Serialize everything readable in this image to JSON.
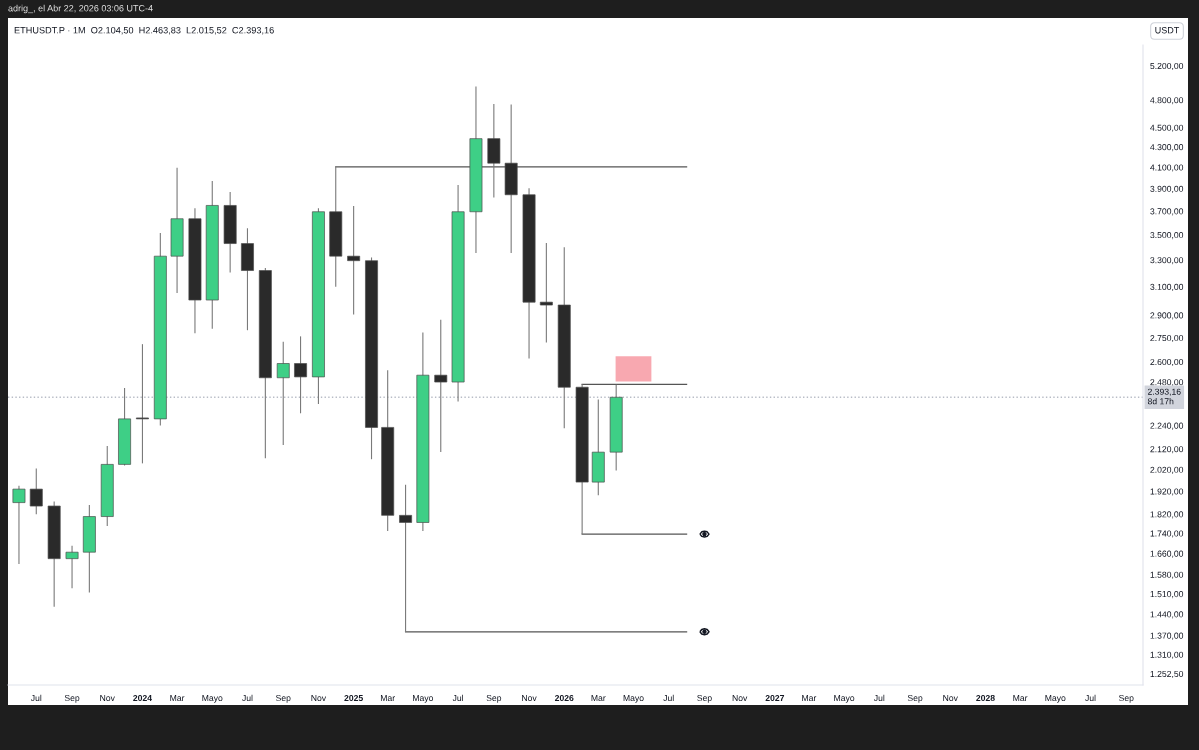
{
  "chart_data": {
    "type": "candlestick",
    "title": "ETHUSDT.P · 1M  O2.104,50  H2.463,83  L2.015,52  C2.393,16",
    "ylabel": "USDT",
    "annotations": [
      "adrig_, el Abr 22, 2026 03:06 UTC-4"
    ],
    "x": [
      "2023-06",
      "2023-07",
      "2023-08",
      "2023-09",
      "2023-10",
      "2023-11",
      "2023-12",
      "2024-01",
      "2024-02",
      "2024-03",
      "2024-04",
      "2024-05",
      "2024-06",
      "2024-07",
      "2024-08",
      "2024-09",
      "2024-10",
      "2024-11",
      "2024-12",
      "2025-01",
      "2025-02",
      "2025-03",
      "2025-04",
      "2025-05",
      "2025-06",
      "2025-07",
      "2025-08",
      "2025-09",
      "2025-10",
      "2025-11",
      "2025-12",
      "2026-01",
      "2026-02",
      "2026-03",
      "2026-04"
    ],
    "ohlc": [
      [
        1870,
        1945,
        1620,
        1930
      ],
      [
        1930,
        2025,
        1820,
        1855
      ],
      [
        1855,
        1875,
        1465,
        1640
      ],
      [
        1640,
        1690,
        1530,
        1665
      ],
      [
        1665,
        1860,
        1515,
        1810
      ],
      [
        1810,
        2135,
        1770,
        2045
      ],
      [
        2045,
        2445,
        2040,
        2275
      ],
      [
        2280,
        2710,
        2050,
        2275
      ],
      [
        2275,
        3515,
        2240,
        3330
      ],
      [
        3330,
        4095,
        3055,
        3635
      ],
      [
        3635,
        3725,
        2780,
        3005
      ],
      [
        3005,
        3970,
        2810,
        3750
      ],
      [
        3750,
        3870,
        3205,
        3430
      ],
      [
        3430,
        3555,
        2800,
        3220
      ],
      [
        3220,
        3240,
        2075,
        2505
      ],
      [
        2505,
        2725,
        2140,
        2590
      ],
      [
        2590,
        2760,
        2305,
        2510
      ],
      [
        2510,
        3725,
        2355,
        3695
      ],
      [
        3695,
        4105,
        3100,
        3330
      ],
      [
        3330,
        3745,
        2905,
        3295
      ],
      [
        3295,
        3320,
        2070,
        2230
      ],
      [
        2230,
        2550,
        1750,
        1815
      ],
      [
        1815,
        1950,
        1382,
        1785
      ],
      [
        1785,
        2785,
        1750,
        2520
      ],
      [
        2520,
        2870,
        2105,
        2480
      ],
      [
        2480,
        3935,
        2370,
        3695
      ],
      [
        3695,
        4955,
        3355,
        4385
      ],
      [
        4385,
        4755,
        3820,
        4140
      ],
      [
        4140,
        4750,
        3355,
        3845
      ],
      [
        3845,
        3905,
        2620,
        2990
      ],
      [
        2990,
        3435,
        2720,
        2970
      ],
      [
        2970,
        3400,
        2225,
        2450
      ],
      [
        2450,
        2467,
        1737,
        1962
      ],
      [
        1962,
        2380,
        1903,
        2104.5
      ],
      [
        2104.5,
        2463.83,
        2015.52,
        2393.16
      ]
    ],
    "colors": [
      "#3ecf86",
      "#2a2a2a",
      "#2a2a2a",
      "#3ecf86",
      "#3ecf86",
      "#3ecf86",
      "#3ecf86",
      "#2a2a2a",
      "#3ecf86",
      "#3ecf86",
      "#2a2a2a",
      "#3ecf86",
      "#2a2a2a",
      "#2a2a2a",
      "#2a2a2a",
      "#3ecf86",
      "#2a2a2a",
      "#3ecf86",
      "#2a2a2a",
      "#2a2a2a",
      "#2a2a2a",
      "#2a2a2a",
      "#2a2a2a",
      "#3ecf86",
      "#2a2a2a",
      "#3ecf86",
      "#3ecf86",
      "#2a2a2a",
      "#2a2a2a",
      "#2a2a2a",
      "#2a2a2a",
      "#2a2a2a",
      "#2a2a2a",
      "#3ecf86",
      "#3ecf86"
    ],
    "series": [
      {
        "type": "bar",
        "x": [
          "2026-05"
        ],
        "base": [
          2483
        ],
        "values": [
          152
        ],
        "color": "#f8a8b0"
      }
    ],
    "log": "y",
    "xlim": [
      "2023-05-13",
      "2028-09-30"
    ],
    "xticks": [
      {
        "value": "2023-07",
        "label": "Jul"
      },
      {
        "value": "2023-09",
        "label": "Sep"
      },
      {
        "value": "2023-11",
        "label": "Nov"
      },
      {
        "value": "2024-01",
        "label": "2024"
      },
      {
        "value": "2024-03",
        "label": "Mar"
      },
      {
        "value": "2024-05",
        "label": "Mayo"
      },
      {
        "value": "2024-07",
        "label": "Jul"
      },
      {
        "value": "2024-09",
        "label": "Sep"
      },
      {
        "value": "2024-11",
        "label": "Nov"
      },
      {
        "value": "2025-01",
        "label": "2025"
      },
      {
        "value": "2025-03",
        "label": "Mar"
      },
      {
        "value": "2025-05",
        "label": "Mayo"
      },
      {
        "value": "2025-07",
        "label": "Jul"
      },
      {
        "value": "2025-09",
        "label": "Sep"
      },
      {
        "value": "2025-11",
        "label": "Nov"
      },
      {
        "value": "2026-01",
        "label": "2026"
      },
      {
        "value": "2026-03",
        "label": "Mar"
      },
      {
        "value": "2026-05",
        "label": "Mayo"
      },
      {
        "value": "2026-07",
        "label": "Jul"
      },
      {
        "value": "2026-09",
        "label": "Sep"
      },
      {
        "value": "2026-11",
        "label": "Nov"
      },
      {
        "value": "2027-01",
        "label": "2027"
      },
      {
        "value": "2027-03",
        "label": "Mar"
      },
      {
        "value": "2027-05",
        "label": "Mayo"
      },
      {
        "value": "2027-07",
        "label": "Jul"
      },
      {
        "value": "2027-09",
        "label": "Sep"
      },
      {
        "value": "2027-11",
        "label": "Nov"
      },
      {
        "value": "2028-01",
        "label": "2028"
      },
      {
        "value": "2028-03",
        "label": "Mar"
      },
      {
        "value": "2028-05",
        "label": "Mayo"
      },
      {
        "value": "2028-07",
        "label": "Jul"
      },
      {
        "value": "2028-09",
        "label": "Sep"
      }
    ],
    "ylim": [
      1220,
      5460
    ],
    "yticks": [
      {
        "value": 5200,
        "label": "5.200,00"
      },
      {
        "value": 4800,
        "label": "4.800,00"
      },
      {
        "value": 4500,
        "label": "4.500,00"
      },
      {
        "value": 4300,
        "label": "4.300,00"
      },
      {
        "value": 4100,
        "label": "4.100,00"
      },
      {
        "value": 3900,
        "label": "3.900,00"
      },
      {
        "value": 3700,
        "label": "3.700,00"
      },
      {
        "value": 3500,
        "label": "3.500,00"
      },
      {
        "value": 3300,
        "label": "3.300,00"
      },
      {
        "value": 3100,
        "label": "3.100,00"
      },
      {
        "value": 2900,
        "label": "2.900,00"
      },
      {
        "value": 2750,
        "label": "2.750,00"
      },
      {
        "value": 2600,
        "label": "2.600,00"
      },
      {
        "value": 2480,
        "label": "2.480,00"
      },
      {
        "value": 2240,
        "label": "2.240,00"
      },
      {
        "value": 2120,
        "label": "2.120,00"
      },
      {
        "value": 2020,
        "label": "2.020,00"
      },
      {
        "value": 1920,
        "label": "1.920,00"
      },
      {
        "value": 1820,
        "label": "1.820,00"
      },
      {
        "value": 1740,
        "label": "1.740,00"
      },
      {
        "value": 1660,
        "label": "1.660,00"
      },
      {
        "value": 1580,
        "label": "1.580,00"
      },
      {
        "value": 1510,
        "label": "1.510,00"
      },
      {
        "value": 1440,
        "label": "1.440,00"
      },
      {
        "value": 1370,
        "label": "1.370,00"
      },
      {
        "value": 1310,
        "label": "1.310,00"
      },
      {
        "value": 1252.5,
        "label": "1.252,50"
      }
    ],
    "ref_lines": [
      {
        "axis": "y",
        "value": 2393.16,
        "label": "2.393,16\n8d 17h",
        "color": "#b8bcc6",
        "line_style": "dotted"
      },
      {
        "axis": "y",
        "value": 4105,
        "color": "#555555",
        "line_style": "solid"
      },
      {
        "axis": "y",
        "value": 2467,
        "color": "#555555",
        "line_style": "solid"
      },
      {
        "axis": "y",
        "value": 1737,
        "color": "#555555",
        "line_style": "solid"
      },
      {
        "axis": "y",
        "value": 1382,
        "color": "#555555",
        "line_style": "solid"
      }
    ]
  }
}
